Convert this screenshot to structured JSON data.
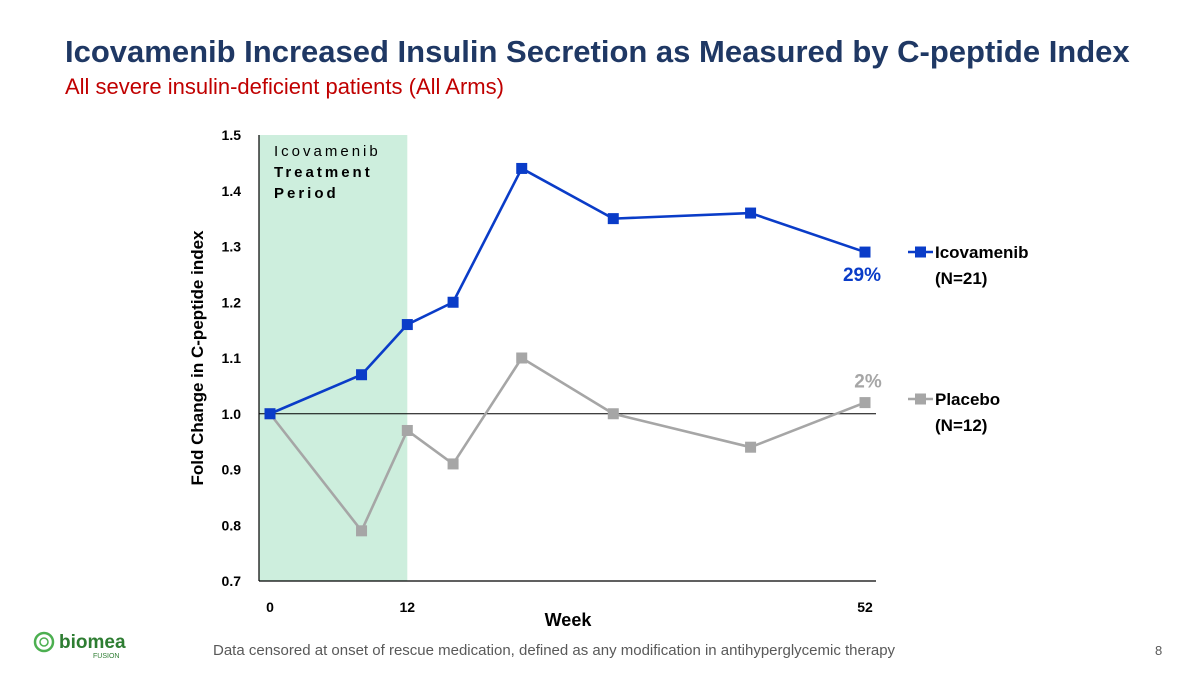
{
  "slide": {
    "title": "Icovamenib Increased Insulin Secretion as Measured by C-peptide Index",
    "subtitle": "All severe insulin-deficient patients (All Arms)",
    "footnote": "Data censored at onset of rescue medication, defined as any modification in antihyperglycemic therapy",
    "page_number": "8",
    "logo": {
      "name": "biomea",
      "sub": "FUSION"
    }
  },
  "chart_data": {
    "type": "line",
    "title": "",
    "xlabel": "Week",
    "ylabel": "Fold Change in C-peptide index",
    "xlim": [
      0,
      52
    ],
    "ylim": [
      0.7,
      1.5
    ],
    "y_ticks": [
      "0.7",
      "0.8",
      "0.9",
      "1.0",
      "1.1",
      "1.2",
      "1.3",
      "1.4",
      "1.5"
    ],
    "x_ticks": [
      {
        "value": 0,
        "label": "0"
      },
      {
        "value": 12,
        "label": "12"
      },
      {
        "value": 52,
        "label": "52"
      }
    ],
    "reference_line": 1.0,
    "grid": false,
    "legend_position": "right",
    "shaded_region": {
      "x_range": [
        0,
        12
      ],
      "color": "#cdeedd",
      "label_lines": [
        "Icovamenib",
        "Treatment",
        "Period"
      ]
    },
    "series": [
      {
        "name": "Icovamenib",
        "legend_lines": [
          "Icovamenib",
          "(N=21)"
        ],
        "color": "#0a3cc8",
        "x": [
          0,
          8,
          12,
          16,
          22,
          30,
          42,
          52
        ],
        "values": [
          1.0,
          1.07,
          1.16,
          1.2,
          1.44,
          1.35,
          1.36,
          1.29
        ],
        "end_label": "29%"
      },
      {
        "name": "Placebo",
        "legend_lines": [
          "Placebo",
          "(N=12)"
        ],
        "color": "#a6a6a6",
        "x": [
          0,
          8,
          12,
          16,
          22,
          30,
          42,
          52
        ],
        "values": [
          1.0,
          0.79,
          0.97,
          0.91,
          1.1,
          1.0,
          0.94,
          1.02
        ],
        "end_label": "2%"
      }
    ]
  }
}
